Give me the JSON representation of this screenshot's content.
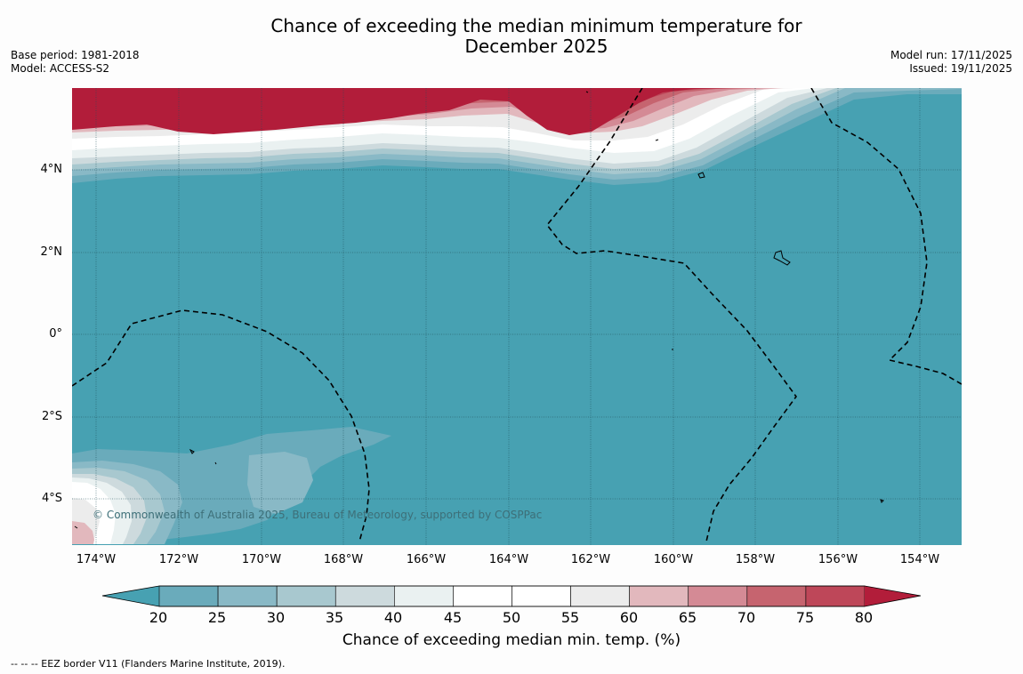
{
  "title_line1": "Chance of exceeding the median minimum temperature for",
  "title_line2": "December 2025",
  "meta": {
    "base_period": "Base period: 1981-2018",
    "model": "Model: ACCESS-S2",
    "model_run": "Model run: 17/11/2025",
    "issued": "Issued: 19/11/2025"
  },
  "lat_labels": [
    "4°N",
    "2°N",
    "0°",
    "2°S",
    "4°S"
  ],
  "lon_labels": [
    "174°W",
    "172°W",
    "170°W",
    "168°W",
    "166°W",
    "164°W",
    "162°W",
    "160°W",
    "158°W",
    "156°W",
    "154°W"
  ],
  "copyright": "© Commonwealth of Australia 2025, Bureau of Meteorology, supported by COSPPac",
  "colorbar": {
    "ticks": [
      "20",
      "25",
      "30",
      "35",
      "40",
      "45",
      "50",
      "55",
      "60",
      "65",
      "70",
      "75",
      "80"
    ],
    "colors": [
      "#47a1b2",
      "#6aabbb",
      "#89b9c6",
      "#a8c8cf",
      "#cddadd",
      "#eaf1f1",
      "#ffffff",
      "#ffffff",
      "#ececec",
      "#e2b8bd",
      "#d48a95",
      "#c6646f",
      "#be4759",
      "#b21d3a"
    ],
    "label": "Chance of exceeding median min. temp. (%)"
  },
  "footnote": "--  --  -- EEZ border V11 (Flanders Marine Institute, 2019)."
}
